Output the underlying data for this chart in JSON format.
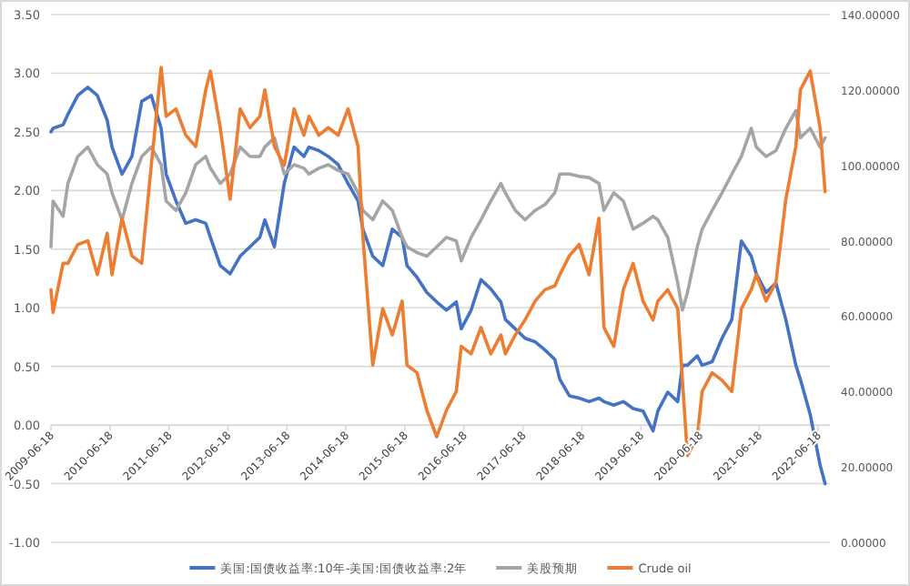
{
  "chart_data": {
    "type": "line",
    "x": [
      "2009-06-18",
      "2009-07",
      "2009-09",
      "2009-10",
      "2009-12",
      "2010-02",
      "2010-04",
      "2010-06",
      "2010-07",
      "2010-09",
      "2010-11",
      "2011-01",
      "2011-03",
      "2011-05",
      "2011-06",
      "2011-08",
      "2011-10",
      "2011-12",
      "2012-02",
      "2012-03",
      "2012-05",
      "2012-07",
      "2012-09",
      "2012-11",
      "2013-01",
      "2013-02",
      "2013-04",
      "2013-06",
      "2013-08",
      "2013-10",
      "2013-11",
      "2014-01",
      "2014-03",
      "2014-05",
      "2014-07",
      "2014-09",
      "2014-10",
      "2014-12",
      "2015-02",
      "2015-04",
      "2015-06",
      "2015-07",
      "2015-09",
      "2015-11",
      "2016-01",
      "2016-03",
      "2016-05",
      "2016-06",
      "2016-08",
      "2016-10",
      "2016-12",
      "2017-02",
      "2017-03",
      "2017-05",
      "2017-07",
      "2017-09",
      "2017-11",
      "2018-01",
      "2018-02",
      "2018-04",
      "2018-06",
      "2018-08",
      "2018-10",
      "2018-11",
      "2019-01",
      "2019-03",
      "2019-05",
      "2019-07",
      "2019-09",
      "2019-10",
      "2019-12",
      "2020-02",
      "2020-03",
      "2020-04",
      "2020-06",
      "2020-07",
      "2020-09",
      "2020-11",
      "2021-01",
      "2021-03",
      "2021-05",
      "2021-06",
      "2021-08",
      "2021-10",
      "2021-12",
      "2022-02",
      "2022-03",
      "2022-05",
      "2022-07",
      "2022-08"
    ],
    "series": [
      {
        "name": "美国:国债收益率:10年-美国:国债收益率:2年",
        "color": "#4472c4",
        "values": [
          2.5,
          2.53,
          2.56,
          2.65,
          2.81,
          2.88,
          2.81,
          2.6,
          2.37,
          2.14,
          2.29,
          2.76,
          2.81,
          2.53,
          2.14,
          1.91,
          1.72,
          1.75,
          1.72,
          1.6,
          1.36,
          1.29,
          1.44,
          1.52,
          1.6,
          1.75,
          1.52,
          2.06,
          2.37,
          2.29,
          2.37,
          2.34,
          2.29,
          2.22,
          2.06,
          1.91,
          1.67,
          1.44,
          1.36,
          1.67,
          1.6,
          1.36,
          1.26,
          1.13,
          1.05,
          0.98,
          1.05,
          0.82,
          0.98,
          1.24,
          1.16,
          1.05,
          0.9,
          0.82,
          0.74,
          0.71,
          0.64,
          0.56,
          0.39,
          0.25,
          0.23,
          0.2,
          0.23,
          0.2,
          0.17,
          0.2,
          0.14,
          0.12,
          -0.05,
          0.12,
          0.28,
          0.2,
          0.51,
          0.51,
          0.59,
          0.51,
          0.54,
          0.74,
          0.9,
          1.57,
          1.44,
          1.29,
          1.13,
          1.21,
          0.9,
          0.51,
          0.39,
          0.09,
          -0.34,
          -0.5
        ]
      },
      {
        "name": "美股预期",
        "color": "#a5a5a5",
        "values": [
          1.52,
          1.91,
          1.78,
          2.06,
          2.29,
          2.37,
          2.22,
          2.14,
          1.98,
          1.75,
          2.06,
          2.29,
          2.37,
          2.22,
          1.91,
          1.83,
          1.98,
          2.22,
          2.29,
          2.19,
          2.06,
          2.14,
          2.37,
          2.29,
          2.29,
          2.37,
          2.45,
          2.14,
          2.22,
          2.19,
          2.14,
          2.19,
          2.22,
          2.17,
          2.14,
          1.98,
          1.83,
          1.75,
          1.91,
          1.83,
          1.6,
          1.52,
          1.47,
          1.44,
          1.52,
          1.6,
          1.57,
          1.4,
          1.6,
          1.75,
          1.91,
          2.06,
          1.98,
          1.83,
          1.75,
          1.83,
          1.88,
          1.98,
          2.14,
          2.14,
          2.12,
          2.11,
          2.06,
          1.83,
          1.98,
          1.91,
          1.67,
          1.72,
          1.78,
          1.75,
          1.6,
          1.21,
          0.98,
          1.13,
          1.52,
          1.67,
          1.83,
          1.98,
          2.14,
          2.29,
          2.53,
          2.37,
          2.29,
          2.34,
          2.53,
          2.68,
          2.45,
          2.53,
          2.37,
          2.45
        ]
      },
      {
        "name": "Crude oil",
        "color": "#ed7d31",
        "axis": "y2",
        "values": [
          67,
          61,
          74,
          74,
          79,
          80,
          71,
          82,
          71,
          86,
          76,
          74,
          100,
          126,
          113,
          115,
          108,
          105,
          120,
          125,
          110,
          91,
          115,
          110,
          113,
          120,
          105,
          100,
          115,
          108,
          113,
          108,
          110,
          108,
          115,
          105,
          81,
          47,
          62,
          55,
          64,
          47,
          45,
          35,
          28,
          35,
          40,
          52,
          50,
          57,
          50,
          55,
          50,
          55,
          59,
          64,
          67,
          68,
          71,
          76,
          79,
          71,
          86,
          57,
          52,
          67,
          74,
          64,
          59,
          64,
          67,
          62,
          43,
          23,
          28,
          40,
          45,
          43,
          40,
          62,
          67,
          71,
          64,
          69,
          91,
          105,
          120,
          125,
          110,
          93
        ]
      }
    ],
    "xlim": [
      "2009-06-18",
      "2022-08-31"
    ],
    "xticks": [
      "2009-06-18",
      "2010-06-18",
      "2011-06-18",
      "2012-06-18",
      "2013-06-18",
      "2014-06-18",
      "2015-06-18",
      "2016-06-18",
      "2017-06-18",
      "2018-06-18",
      "2019-06-18",
      "2020-06-18",
      "2021-06-18",
      "2022-06-18"
    ],
    "ylim": [
      -1,
      3.5
    ],
    "yticks": [
      {
        "value": -1,
        "label": "-1.00"
      },
      {
        "value": -0.5,
        "label": "-0.50"
      },
      {
        "value": 0,
        "label": "0.00"
      },
      {
        "value": 0.5,
        "label": "0.50"
      },
      {
        "value": 1,
        "label": "1.00"
      },
      {
        "value": 1.5,
        "label": "1.50"
      },
      {
        "value": 2,
        "label": "2.00"
      },
      {
        "value": 2.5,
        "label": "2.50"
      },
      {
        "value": 3,
        "label": "3.00"
      },
      {
        "value": 3.5,
        "label": "3.50"
      }
    ],
    "y2lim": [
      0,
      140
    ],
    "y2ticks": [
      {
        "value": 0,
        "label": "0.00000"
      },
      {
        "value": 20,
        "label": "20.00000"
      },
      {
        "value": 40,
        "label": "40.00000"
      },
      {
        "value": 60,
        "label": "60.00000"
      },
      {
        "value": 80,
        "label": "80.00000"
      },
      {
        "value": 100,
        "label": "100.00000"
      },
      {
        "value": 120,
        "label": "120.00000"
      },
      {
        "value": 140,
        "label": "140.00000"
      }
    ],
    "grid": "y",
    "legend": "bottom"
  }
}
